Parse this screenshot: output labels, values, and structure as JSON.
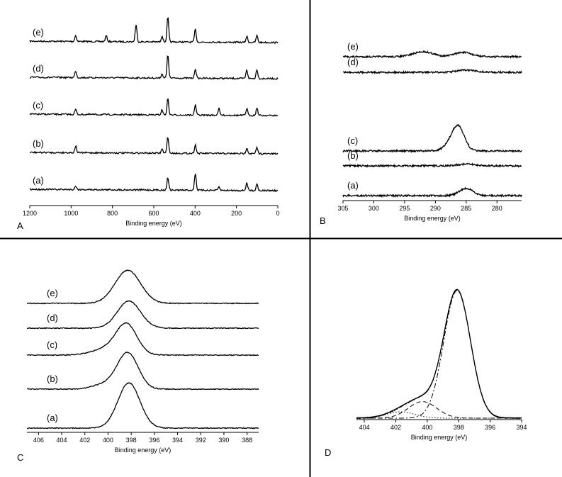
{
  "chart_data": [
    {
      "panel": "A",
      "type": "line",
      "xlabel": "Binding energy (eV)",
      "ylabel": "",
      "xlim": [
        1200,
        0
      ],
      "x_reversed": true,
      "xticks": [
        "1200",
        "1000",
        "800",
        "600",
        "400",
        "200",
        "0"
      ],
      "grid": false,
      "series": [
        {
          "name": "(e)",
          "peaks": [
            {
              "x": 978,
              "h": 0.35
            },
            {
              "x": 830,
              "h": 0.35
            },
            {
              "x": 686,
              "h": 1.0
            },
            {
              "x": 560,
              "h": 0.35
            },
            {
              "x": 532,
              "h": 1.45
            },
            {
              "x": 399,
              "h": 0.75
            },
            {
              "x": 150,
              "h": 0.35
            },
            {
              "x": 101,
              "h": 0.4
            }
          ]
        },
        {
          "name": "(d)",
          "peaks": [
            {
              "x": 978,
              "h": 0.4
            },
            {
              "x": 560,
              "h": 0.25
            },
            {
              "x": 532,
              "h": 1.35
            },
            {
              "x": 399,
              "h": 0.55
            },
            {
              "x": 150,
              "h": 0.5
            },
            {
              "x": 101,
              "h": 0.55
            }
          ]
        },
        {
          "name": "(c)",
          "peaks": [
            {
              "x": 978,
              "h": 0.3
            },
            {
              "x": 560,
              "h": 0.3
            },
            {
              "x": 532,
              "h": 0.95
            },
            {
              "x": 399,
              "h": 0.6
            },
            {
              "x": 285,
              "h": 0.4
            },
            {
              "x": 150,
              "h": 0.4
            },
            {
              "x": 101,
              "h": 0.45
            }
          ]
        },
        {
          "name": "(b)",
          "peaks": [
            {
              "x": 978,
              "h": 0.4
            },
            {
              "x": 560,
              "h": 0.25
            },
            {
              "x": 532,
              "h": 0.95
            },
            {
              "x": 399,
              "h": 0.5
            },
            {
              "x": 150,
              "h": 0.35
            },
            {
              "x": 101,
              "h": 0.35
            }
          ]
        },
        {
          "name": "(a)",
          "peaks": [
            {
              "x": 978,
              "h": 0.2
            },
            {
              "x": 532,
              "h": 0.75
            },
            {
              "x": 399,
              "h": 1.0
            },
            {
              "x": 285,
              "h": 0.2
            },
            {
              "x": 150,
              "h": 0.45
            },
            {
              "x": 101,
              "h": 0.4
            }
          ]
        }
      ]
    },
    {
      "panel": "B",
      "type": "line",
      "xlabel": "Binding energy (eV)",
      "ylabel": "",
      "xlim": [
        305,
        276
      ],
      "x_reversed": true,
      "xticks": [
        "305",
        "300",
        "295",
        "290",
        "285",
        "280"
      ],
      "grid": false,
      "series": [
        {
          "name": "(e)",
          "peaks": [
            {
              "x": 292.0,
              "h": 0.35,
              "w": 1.6
            },
            {
              "x": 285.5,
              "h": 0.3,
              "w": 1.4
            }
          ]
        },
        {
          "name": "(d)",
          "peaks": [
            {
              "x": 285.0,
              "h": 0.15,
              "w": 1.5
            }
          ]
        },
        {
          "name": "(c)",
          "peaks": [
            {
              "x": 286.3,
              "h": 1.6,
              "w": 1.0
            },
            {
              "x": 287.5,
              "h": 0.35,
              "w": 1.2
            }
          ]
        },
        {
          "name": "(b)",
          "peaks": [
            {
              "x": 285.0,
              "h": 0.12,
              "w": 1.5
            }
          ]
        },
        {
          "name": "(a)",
          "peaks": [
            {
              "x": 285.0,
              "h": 0.5,
              "w": 1.1
            }
          ]
        }
      ]
    },
    {
      "panel": "C",
      "type": "line",
      "xlabel": "Binding energy (eV)",
      "ylabel": "",
      "xlim": [
        407,
        387
      ],
      "x_reversed": true,
      "xticks": [
        "406",
        "404",
        "402",
        "400",
        "398",
        "396",
        "394",
        "392",
        "390",
        "388"
      ],
      "grid": false,
      "series": [
        {
          "name": "(e)",
          "peaks": [
            {
              "x": 398.3,
              "h": 0.55,
              "w": 1.1
            }
          ]
        },
        {
          "name": "(d)",
          "peaks": [
            {
              "x": 398.2,
              "h": 0.45,
              "w": 1.0
            }
          ]
        },
        {
          "name": "(c)",
          "peaks": [
            {
              "x": 398.4,
              "h": 0.5,
              "w": 0.9
            },
            {
              "x": 400.2,
              "h": 0.1,
              "w": 1.2
            }
          ]
        },
        {
          "name": "(b)",
          "peaks": [
            {
              "x": 398.3,
              "h": 0.6,
              "w": 0.9
            },
            {
              "x": 400.3,
              "h": 0.08,
              "w": 1.0
            }
          ]
        },
        {
          "name": "(a)",
          "peaks": [
            {
              "x": 398.2,
              "h": 0.75,
              "w": 0.95
            }
          ]
        }
      ]
    },
    {
      "panel": "D",
      "type": "line",
      "xlabel": "Binding energy (eV)",
      "ylabel": "",
      "xlim": [
        404.5,
        394
      ],
      "x_reversed": true,
      "xticks": [
        "404",
        "402",
        "400",
        "398",
        "396",
        "394"
      ],
      "grid": false,
      "components": [
        {
          "name": "",
          "style": "dashdot",
          "center": 398.1,
          "h": 1.0,
          "w": 0.85
        },
        {
          "name": "",
          "style": "dashed",
          "center": 400.3,
          "h": 0.13,
          "w": 0.9
        },
        {
          "name": "",
          "style": "dotted",
          "center": 401.7,
          "h": 0.05,
          "w": 0.9
        }
      ]
    }
  ]
}
